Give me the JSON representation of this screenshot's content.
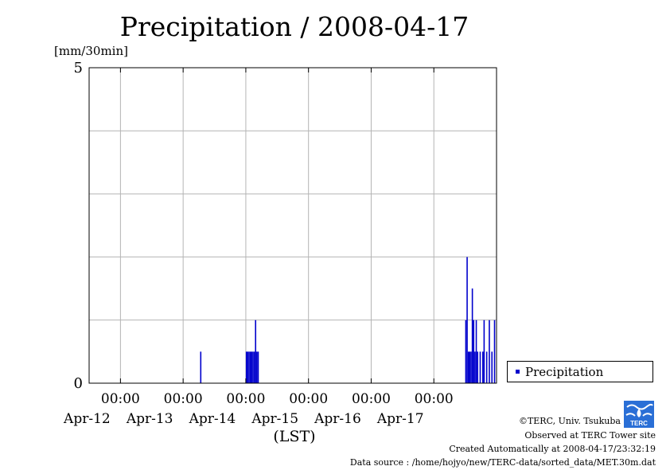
{
  "chart_data": {
    "type": "bar",
    "title": "Precipitation / 2008-04-17",
    "ylabel": "[mm/30min]",
    "xlabel": "(LST)",
    "ylim": [
      0,
      5
    ],
    "y_tick_labels": [
      "0",
      "5"
    ],
    "x_range": [
      "2008-04-11 12:00",
      "2008-04-18 00:00"
    ],
    "x_tick_labels": [
      {
        "time": "00:00",
        "date": "Apr-12"
      },
      {
        "time": "00:00",
        "date": "Apr-13"
      },
      {
        "time": "00:00",
        "date": "Apr-14"
      },
      {
        "time": "00:00",
        "date": "Apr-15"
      },
      {
        "time": "00:00",
        "date": "Apr-16"
      },
      {
        "time": "00:00",
        "date": "Apr-17"
      }
    ],
    "grid": true,
    "legend_position": "right",
    "series": [
      {
        "name": "Precipitation",
        "color": "#0000cc",
        "points": [
          {
            "time": "2008-04-13 06:30",
            "value": 0.5
          },
          {
            "time": "2008-04-14 00:00",
            "value": 0.5
          },
          {
            "time": "2008-04-14 00:30",
            "value": 0.5
          },
          {
            "time": "2008-04-14 01:00",
            "value": 0.5
          },
          {
            "time": "2008-04-14 01:30",
            "value": 0.5
          },
          {
            "time": "2008-04-14 02:00",
            "value": 0.5
          },
          {
            "time": "2008-04-14 02:30",
            "value": 0.5
          },
          {
            "time": "2008-04-14 03:00",
            "value": 0.5
          },
          {
            "time": "2008-04-14 03:30",
            "value": 1.0
          },
          {
            "time": "2008-04-14 04:00",
            "value": 0.5
          },
          {
            "time": "2008-04-14 04:30",
            "value": 0.5
          },
          {
            "time": "2008-04-17 12:00",
            "value": 1.0
          },
          {
            "time": "2008-04-17 12:30",
            "value": 2.0
          },
          {
            "time": "2008-04-17 13:00",
            "value": 0.5
          },
          {
            "time": "2008-04-17 13:30",
            "value": 0.5
          },
          {
            "time": "2008-04-17 14:00",
            "value": 0.5
          },
          {
            "time": "2008-04-17 14:30",
            "value": 1.5
          },
          {
            "time": "2008-04-17 15:00",
            "value": 1.0
          },
          {
            "time": "2008-04-17 15:30",
            "value": 0.5
          },
          {
            "time": "2008-04-17 16:00",
            "value": 1.0
          },
          {
            "time": "2008-04-17 16:30",
            "value": 0.5
          },
          {
            "time": "2008-04-17 17:30",
            "value": 0.5
          },
          {
            "time": "2008-04-17 18:30",
            "value": 0.5
          },
          {
            "time": "2008-04-17 19:00",
            "value": 1.0
          },
          {
            "time": "2008-04-17 20:00",
            "value": 0.5
          },
          {
            "time": "2008-04-17 21:00",
            "value": 1.0
          },
          {
            "time": "2008-04-17 22:00",
            "value": 0.5
          },
          {
            "time": "2008-04-17 23:00",
            "value": 1.0
          }
        ]
      }
    ]
  },
  "footer": {
    "copyright": "©TERC, Univ. Tsukuba",
    "observed": "Observed at TERC Tower site",
    "created": "Created Automatically at 2008-04-17/23:32:19",
    "source": "Data source : /home/hojyo/new/TERC-data/sorted_data/MET.30m.dat"
  },
  "logo": {
    "text": "TERC",
    "color": "#2a6fd6"
  }
}
